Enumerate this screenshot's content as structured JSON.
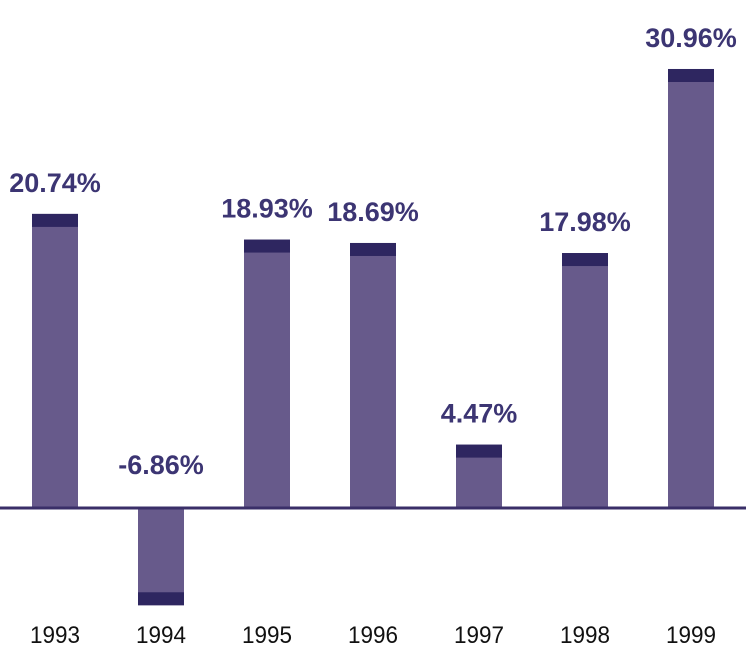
{
  "chart_data": {
    "type": "bar",
    "title": "",
    "xlabel": "",
    "ylabel": "",
    "categories": [
      "1993",
      "1994",
      "1995",
      "1996",
      "1997",
      "1998",
      "1999"
    ],
    "values": [
      20.74,
      -6.86,
      18.93,
      18.69,
      4.47,
      17.98,
      30.96
    ],
    "data_labels": [
      "20.74%",
      "-6.86%",
      "18.93%",
      "18.69%",
      "4.47%",
      "17.98%",
      "30.96%"
    ],
    "ylim": [
      -7,
      31
    ],
    "grid": false,
    "legend": "none",
    "colors": {
      "bar": "#675a8b",
      "bar_cap": "#2e2660",
      "axis": "#3a2f68",
      "value_label": "#3c3573",
      "tick_label": "#111111"
    }
  }
}
